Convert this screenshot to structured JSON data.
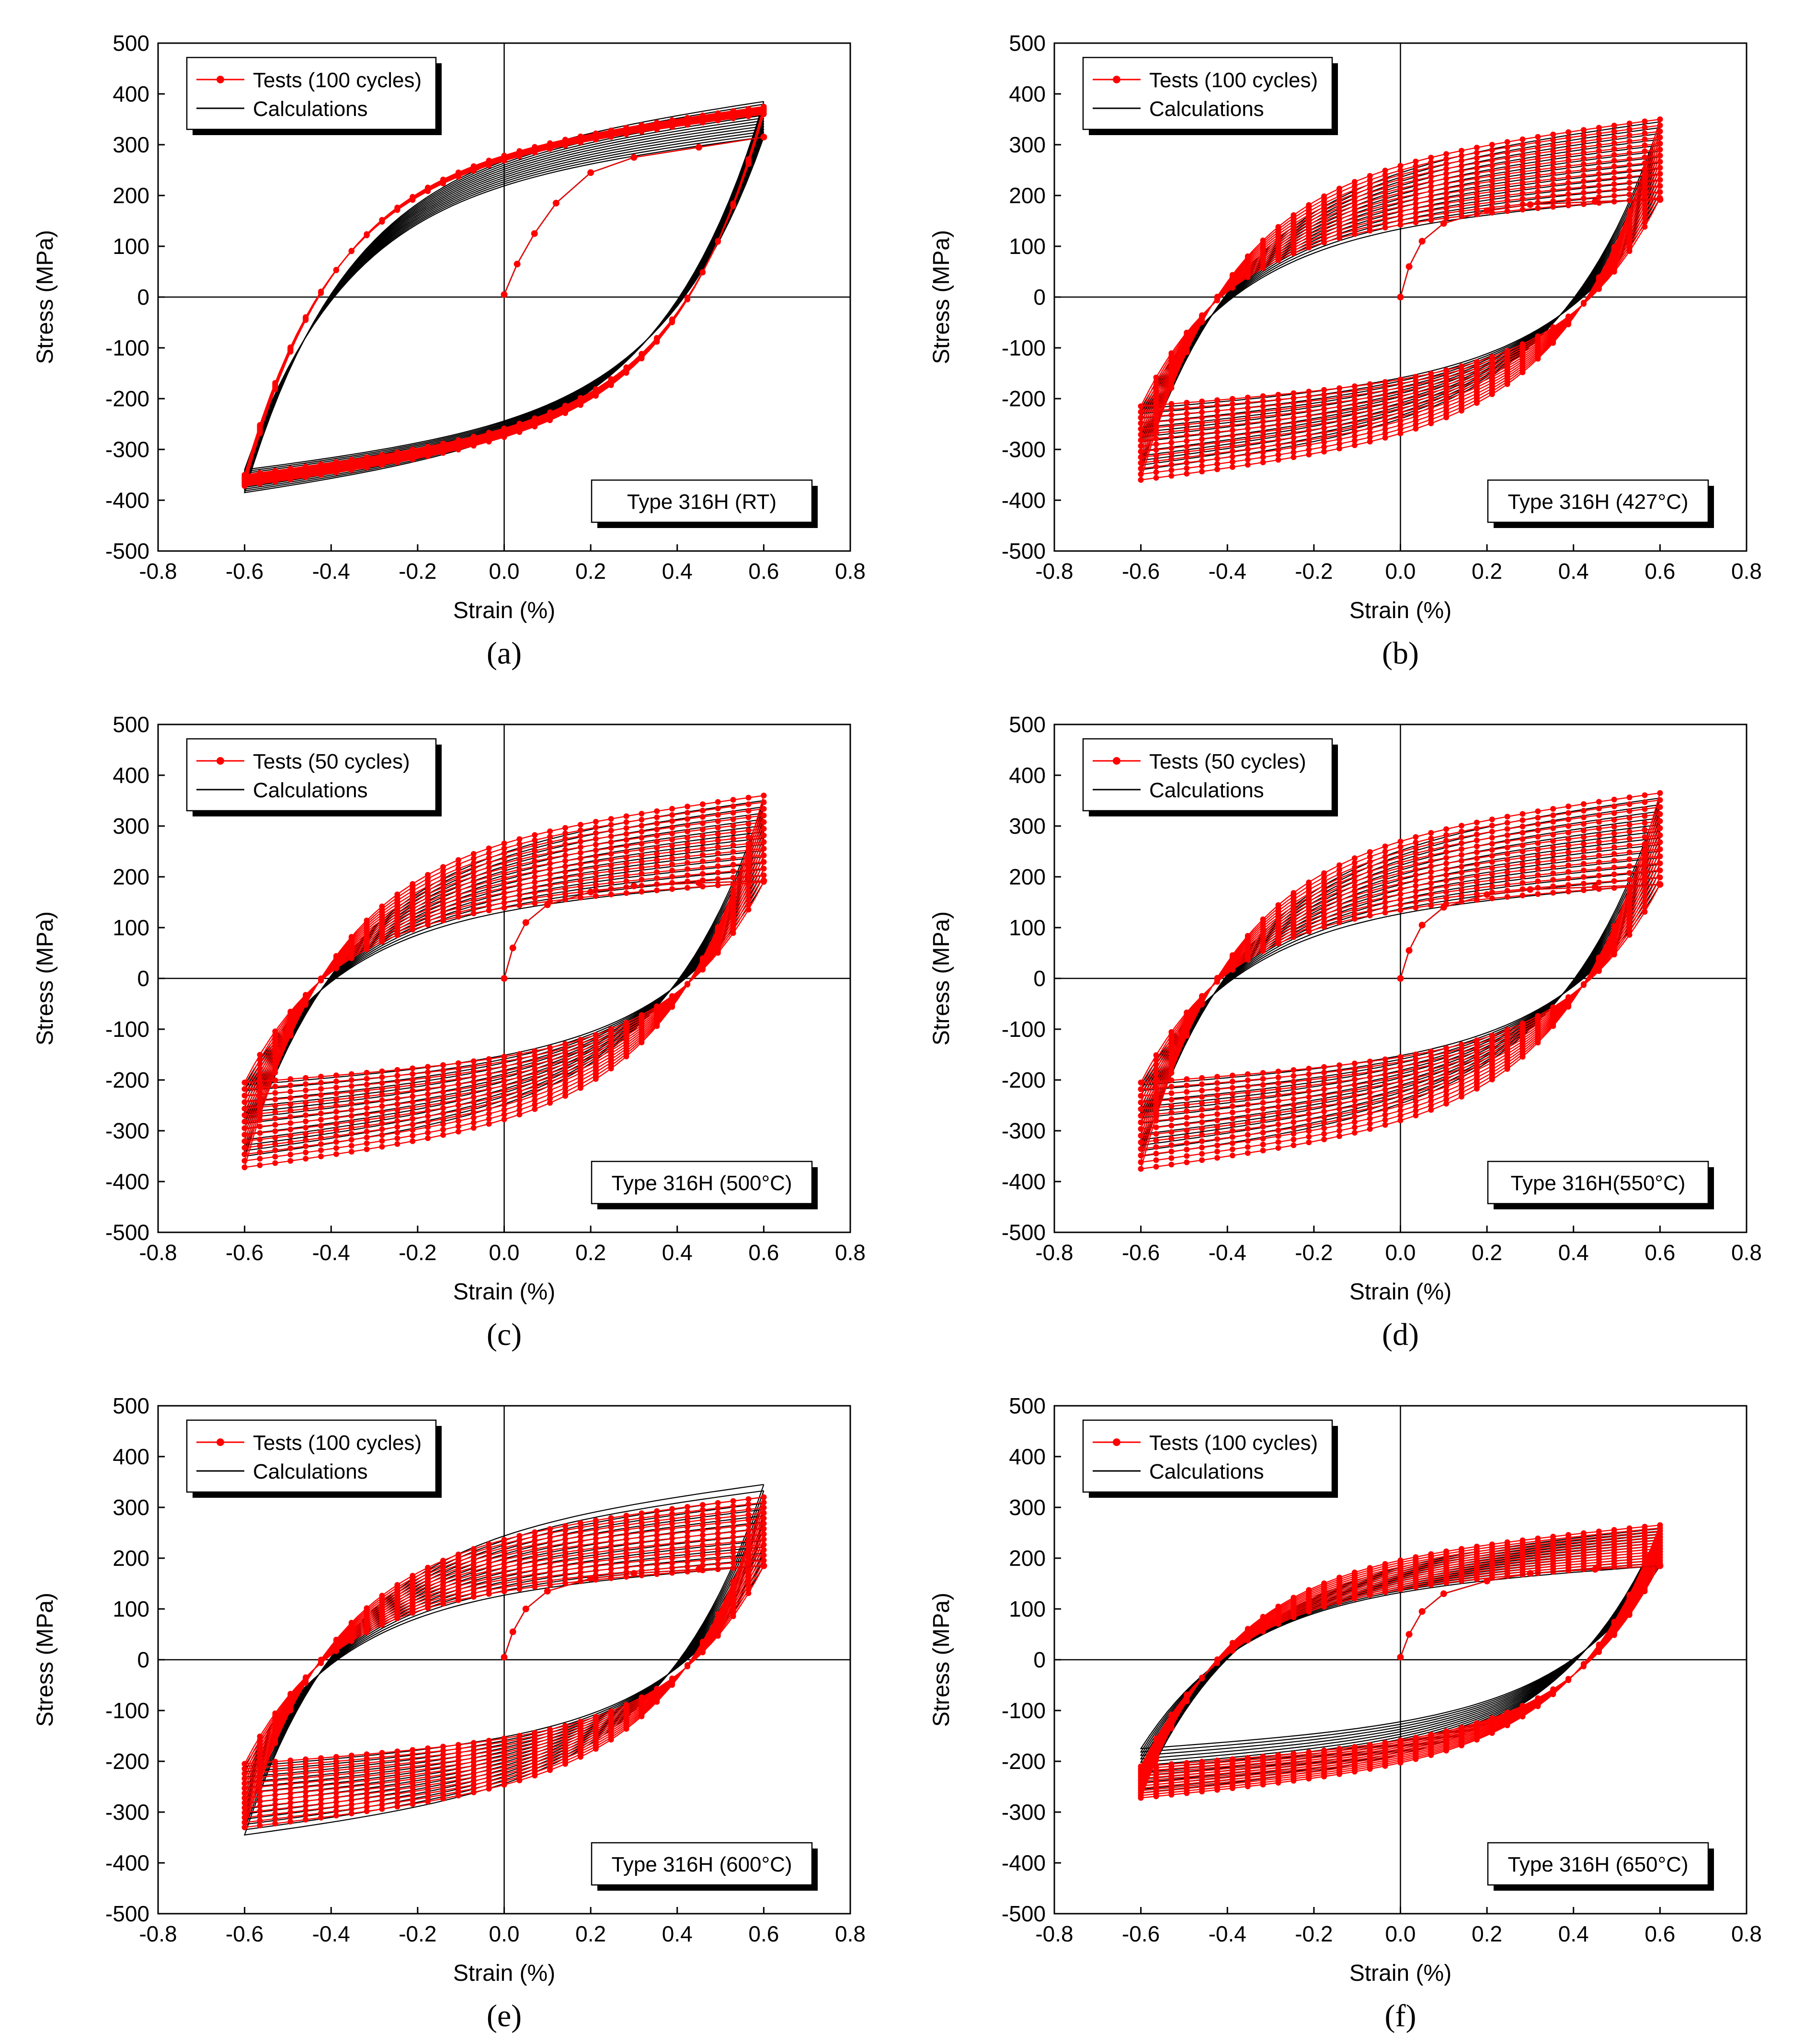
{
  "figure": {
    "colors": {
      "tests": "#ff0000",
      "calculations": "#000000",
      "axes": "#000000",
      "background": "#ffffff"
    }
  },
  "chart_data": [
    {
      "type": "line",
      "panel": "a",
      "caption": "(a)",
      "xlabel": "Strain (%)",
      "ylabel": "Stress (MPa)",
      "xlim": [
        -0.8,
        0.8
      ],
      "ylim": [
        -500,
        500
      ],
      "xticks": [
        "-0.8",
        "-0.6",
        "-0.4",
        "-0.2",
        "0.0",
        "0.2",
        "0.4",
        "0.6",
        "0.8"
      ],
      "yticks": [
        "500",
        "400",
        "300",
        "200",
        "100",
        "0",
        "-100",
        "-200",
        "-300",
        "-400",
        "-500"
      ],
      "legend": {
        "tests": "Tests (100 cycles)",
        "calculations": "Calculations",
        "position": "top-left"
      },
      "annotation": {
        "text": "Type 316H (RT)",
        "position": "bottom-right"
      },
      "strain_amplitude": 0.6,
      "loops": 100,
      "initial_branch": {
        "x": [
          0.0,
          0.03,
          0.07,
          0.12,
          0.2,
          0.3,
          0.45,
          0.6
        ],
        "y": [
          5,
          65,
          125,
          185,
          245,
          275,
          295,
          315
        ]
      },
      "tests_loop": {
        "peak_stress_first": 360,
        "peak_stress_last": 375,
        "valley_stress_first": -350,
        "valley_stress_last": -372
      },
      "calculated_loop": {
        "peak_stress_first": 315,
        "peak_stress_last": 385,
        "valley_stress_first": -340,
        "valley_stress_last": -385
      }
    },
    {
      "type": "line",
      "panel": "b",
      "caption": "(b)",
      "xlabel": "Strain (%)",
      "ylabel": "Stress (MPa)",
      "xlim": [
        -0.8,
        0.8
      ],
      "ylim": [
        -500,
        500
      ],
      "xticks": [
        "-0.8",
        "-0.6",
        "-0.4",
        "-0.2",
        "0.0",
        "0.2",
        "0.4",
        "0.6",
        "0.8"
      ],
      "yticks": [
        "500",
        "400",
        "300",
        "200",
        "100",
        "0",
        "-100",
        "-200",
        "-300",
        "-400",
        "-500"
      ],
      "legend": {
        "tests": "Tests (100 cycles)",
        "calculations": "Calculations",
        "position": "top-left"
      },
      "annotation": {
        "text": "Type 316H (427°C)",
        "position": "bottom-right"
      },
      "strain_amplitude": 0.6,
      "loops": 100,
      "initial_branch": {
        "x": [
          0.0,
          0.02,
          0.05,
          0.1,
          0.2,
          0.3,
          0.45,
          0.6
        ],
        "y": [
          0,
          60,
          110,
          145,
          170,
          182,
          188,
          192
        ]
      },
      "tests_loop": {
        "peak_stress_first": 195,
        "peak_stress_last": 350,
        "valley_stress_first": -215,
        "valley_stress_last": -360
      },
      "calculated_loop": {
        "peak_stress_first": 195,
        "peak_stress_last": 345,
        "valley_stress_first": -220,
        "valley_stress_last": -340
      }
    },
    {
      "type": "line",
      "panel": "c",
      "caption": "(c)",
      "xlabel": "Strain (%)",
      "ylabel": "Stress (MPa)",
      "xlim": [
        -0.8,
        0.8
      ],
      "ylim": [
        -500,
        500
      ],
      "xticks": [
        "-0.8",
        "-0.6",
        "-0.4",
        "-0.2",
        "0.0",
        "0.2",
        "0.4",
        "0.6",
        "0.8"
      ],
      "yticks": [
        "500",
        "400",
        "300",
        "200",
        "100",
        "0",
        "-100",
        "-200",
        "-300",
        "-400",
        "-500"
      ],
      "legend": {
        "tests": "Tests (50 cycles)",
        "calculations": "Calculations",
        "position": "top-left"
      },
      "annotation": {
        "text": "Type 316H (500°C)",
        "position": "bottom-right"
      },
      "strain_amplitude": 0.6,
      "loops": 50,
      "initial_branch": {
        "x": [
          0.0,
          0.02,
          0.05,
          0.1,
          0.2,
          0.3,
          0.45,
          0.6
        ],
        "y": [
          0,
          60,
          110,
          145,
          170,
          182,
          188,
          192
        ]
      },
      "tests_loop": {
        "peak_stress_first": 190,
        "peak_stress_last": 360,
        "valley_stress_first": -205,
        "valley_stress_last": -372
      },
      "calculated_loop": {
        "peak_stress_first": 190,
        "peak_stress_last": 350,
        "valley_stress_first": -210,
        "valley_stress_last": -350
      }
    },
    {
      "type": "line",
      "panel": "d",
      "caption": "(d)",
      "xlabel": "Strain (%)",
      "ylabel": "Stress (MPa)",
      "xlim": [
        -0.8,
        0.8
      ],
      "ylim": [
        -500,
        500
      ],
      "xticks": [
        "-0.8",
        "-0.6",
        "-0.4",
        "-0.2",
        "0.0",
        "0.2",
        "0.4",
        "0.6",
        "0.8"
      ],
      "yticks": [
        "500",
        "400",
        "300",
        "200",
        "100",
        "0",
        "-100",
        "-200",
        "-300",
        "-400",
        "-500"
      ],
      "legend": {
        "tests": "Tests (50 cycles)",
        "calculations": "Calculations",
        "position": "top-left"
      },
      "annotation": {
        "text": "Type 316H(550°C)",
        "position": "bottom-right"
      },
      "strain_amplitude": 0.6,
      "loops": 50,
      "initial_branch": {
        "x": [
          0.0,
          0.02,
          0.05,
          0.1,
          0.2,
          0.3,
          0.45,
          0.6
        ],
        "y": [
          0,
          55,
          105,
          140,
          165,
          175,
          180,
          185
        ]
      },
      "tests_loop": {
        "peak_stress_first": 185,
        "peak_stress_last": 365,
        "valley_stress_first": -205,
        "valley_stress_last": -375
      },
      "calculated_loop": {
        "peak_stress_first": 185,
        "peak_stress_last": 355,
        "valley_stress_first": -210,
        "valley_stress_last": -350
      }
    },
    {
      "type": "line",
      "panel": "e",
      "caption": "(e)",
      "xlabel": "Strain (%)",
      "ylabel": "Stress (MPa)",
      "xlim": [
        -0.8,
        0.8
      ],
      "ylim": [
        -500,
        500
      ],
      "xticks": [
        "-0.8",
        "-0.6",
        "-0.4",
        "-0.2",
        "0.0",
        "0.2",
        "0.4",
        "0.6",
        "0.8"
      ],
      "yticks": [
        "500",
        "400",
        "300",
        "200",
        "100",
        "0",
        "-100",
        "-200",
        "-300",
        "-400",
        "-500"
      ],
      "legend": {
        "tests": "Tests (100 cycles)",
        "calculations": "Calculations",
        "position": "top-left"
      },
      "annotation": {
        "text": "Type 316H (600°C)",
        "position": "bottom-right"
      },
      "strain_amplitude": 0.6,
      "loops": 100,
      "initial_branch": {
        "x": [
          0.0,
          0.02,
          0.05,
          0.1,
          0.2,
          0.3,
          0.45,
          0.6
        ],
        "y": [
          5,
          55,
          100,
          135,
          160,
          170,
          178,
          185
        ]
      },
      "tests_loop": {
        "peak_stress_first": 185,
        "peak_stress_last": 320,
        "valley_stress_first": -205,
        "valley_stress_last": -330
      },
      "calculated_loop": {
        "peak_stress_first": 185,
        "peak_stress_last": 345,
        "valley_stress_first": -210,
        "valley_stress_last": -345
      }
    },
    {
      "type": "line",
      "panel": "f",
      "caption": "(f)",
      "xlabel": "Strain (%)",
      "ylabel": "Stress (MPa)",
      "xlim": [
        -0.8,
        0.8
      ],
      "ylim": [
        -500,
        500
      ],
      "xticks": [
        "-0.8",
        "-0.6",
        "-0.4",
        "-0.2",
        "0.0",
        "0.2",
        "0.4",
        "0.6",
        "0.8"
      ],
      "yticks": [
        "500",
        "400",
        "300",
        "200",
        "100",
        "0",
        "-100",
        "-200",
        "-300",
        "-400",
        "-500"
      ],
      "legend": {
        "tests": "Tests (100 cycles)",
        "calculations": "Calculations",
        "position": "top-left"
      },
      "annotation": {
        "text": "Type 316H (650°C)",
        "position": "bottom-right"
      },
      "strain_amplitude": 0.6,
      "loops": 100,
      "initial_branch": {
        "x": [
          0.0,
          0.02,
          0.05,
          0.1,
          0.2,
          0.3,
          0.45,
          0.6
        ],
        "y": [
          5,
          50,
          95,
          130,
          155,
          170,
          178,
          185
        ]
      },
      "tests_loop": {
        "peak_stress_first": 190,
        "peak_stress_last": 265,
        "valley_stress_first": -210,
        "valley_stress_last": -272
      },
      "calculated_loop": {
        "peak_stress_first": 185,
        "peak_stress_last": 258,
        "valley_stress_first": -175,
        "valley_stress_last": -262
      }
    }
  ]
}
